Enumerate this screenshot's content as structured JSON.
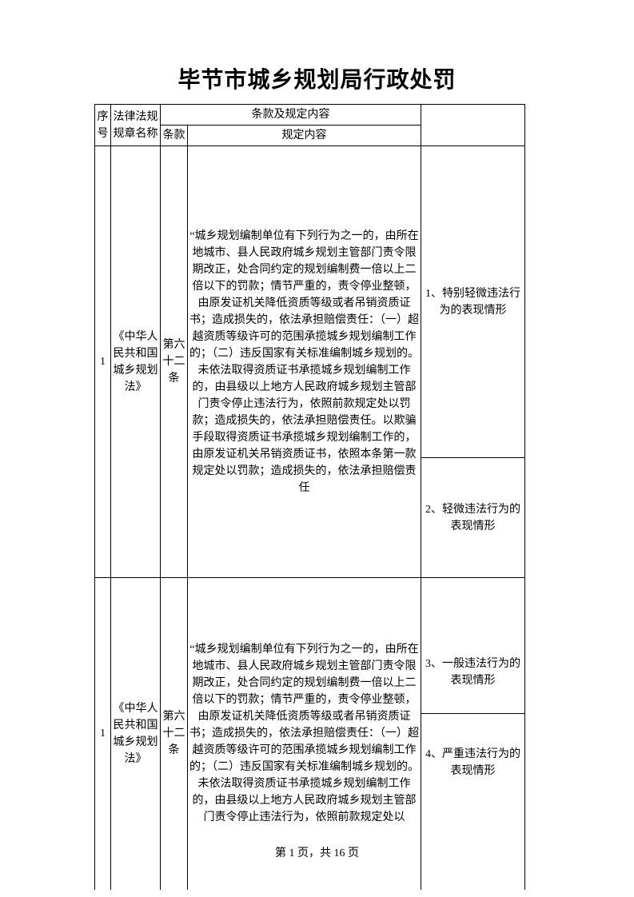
{
  "title": "毕节市城乡规划局行政处罚",
  "header": {
    "seq": "序号",
    "law_name": "法律法规规章名称",
    "clause_group": "条款及规定内容",
    "clause": "条款",
    "content": "规定内容"
  },
  "rows": [
    {
      "seq": "1",
      "law": "《中华人民共和国城乡规划法》",
      "article": "第六十二条",
      "content": "“城乡规划编制单位有下列行为之一的，由所在地城市、县人民政府城乡规划主管部门责令限期改正，处合同约定的规划编制费一倍以上二倍以下的罚款；情节严重的，责令停业整顿，由原发证机关降低资质等级或者吊销资质证书；造成损失的，依法承担赔偿责任：（一）超越资质等级许可的范围承揽城乡规划编制工作的；（二）违反国家有关标准编制城乡规划的。未依法取得资质证书承揽城乡规划编制工作的，由县级以上地方人民政府城乡规划主管部门责令停止违法行为，依照前款规定处以罚款；造成损失的，依法承担赔偿责任。以欺骗手段取得资质证书承揽城乡规划编制工作的，由原发证机关吊销资质证书，依照本条第一款规定处以罚款；造成损失的，依法承担赔偿责任",
      "side1": "1、特别轻微违法行为的表现情形",
      "side2": "2、轻微违法行为的表现情形"
    },
    {
      "seq": "1",
      "law": "《中华人民共和国城乡规划法》",
      "article": "第六十二条",
      "content": "“城乡规划编制单位有下列行为之一的，由所在地城市、县人民政府城乡规划主管部门责令限期改正，处合同约定的规划编制费一倍以上二倍以下的罚款；情节严重的，责令停业整顿，由原发证机关降低资质等级或者吊销资质证书；造成损失的，依法承担赔偿责任：（一）超越资质等级许可的范围承揽城乡规划编制工作的；（二）违反国家有关标准编制城乡规划的。未依法取得资质证书承揽城乡规划编制工作的，由县级以上地方人民政府城乡规划主管部门责令停止违法行为，依照前款规定处以",
      "side1": "3、一般违法行为的表现情形",
      "side2": "4、严重违法行为的表现情形"
    }
  ],
  "row_heights": {
    "r1_side1": 390,
    "r1_side2": 150,
    "r2_side1": 170,
    "r2_side2": 220
  },
  "footer": "第 1 页，共 16 页"
}
